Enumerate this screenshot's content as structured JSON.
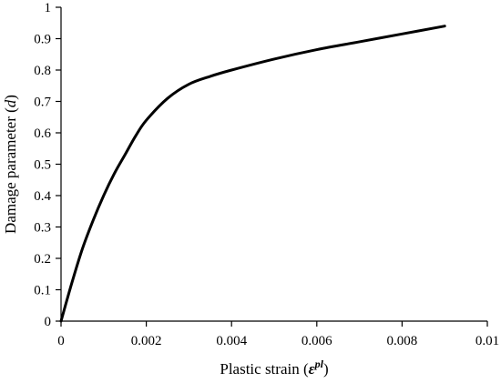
{
  "chart_data": {
    "type": "line",
    "title": "",
    "xlabel": {
      "prefix": "Plastic strain (",
      "symbol": "ε",
      "superscript": "pl",
      "suffix": ")"
    },
    "ylabel": {
      "prefix": "Damage parameter (",
      "symbol": "d",
      "suffix": ")"
    },
    "xlim": [
      0,
      0.01
    ],
    "ylim": [
      0,
      1
    ],
    "xticks": [
      0,
      0.002,
      0.004,
      0.006,
      0.008,
      0.01
    ],
    "xtick_labels": [
      "0",
      "0.002",
      "0.004",
      "0.006",
      "0.008",
      "0.01"
    ],
    "yticks": [
      0,
      0.1,
      0.2,
      0.3,
      0.4,
      0.5,
      0.6,
      0.7,
      0.8,
      0.9,
      1
    ],
    "ytick_labels": [
      "0",
      "0.1",
      "0.2",
      "0.3",
      "0.4",
      "0.5",
      "0.6",
      "0.7",
      "0.8",
      "0.9",
      "1"
    ],
    "grid": false,
    "legend": "none",
    "series": [
      {
        "color": "#000000",
        "x": [
          0,
          0.00025,
          0.0005,
          0.00075,
          0.001,
          0.00125,
          0.0015,
          0.00175,
          0.002,
          0.0025,
          0.003,
          0.0035,
          0.004,
          0.005,
          0.006,
          0.007,
          0.008,
          0.009
        ],
        "y": [
          0,
          0.12,
          0.23,
          0.32,
          0.4,
          0.47,
          0.53,
          0.59,
          0.64,
          0.71,
          0.755,
          0.78,
          0.8,
          0.835,
          0.865,
          0.89,
          0.915,
          0.94
        ]
      }
    ]
  }
}
